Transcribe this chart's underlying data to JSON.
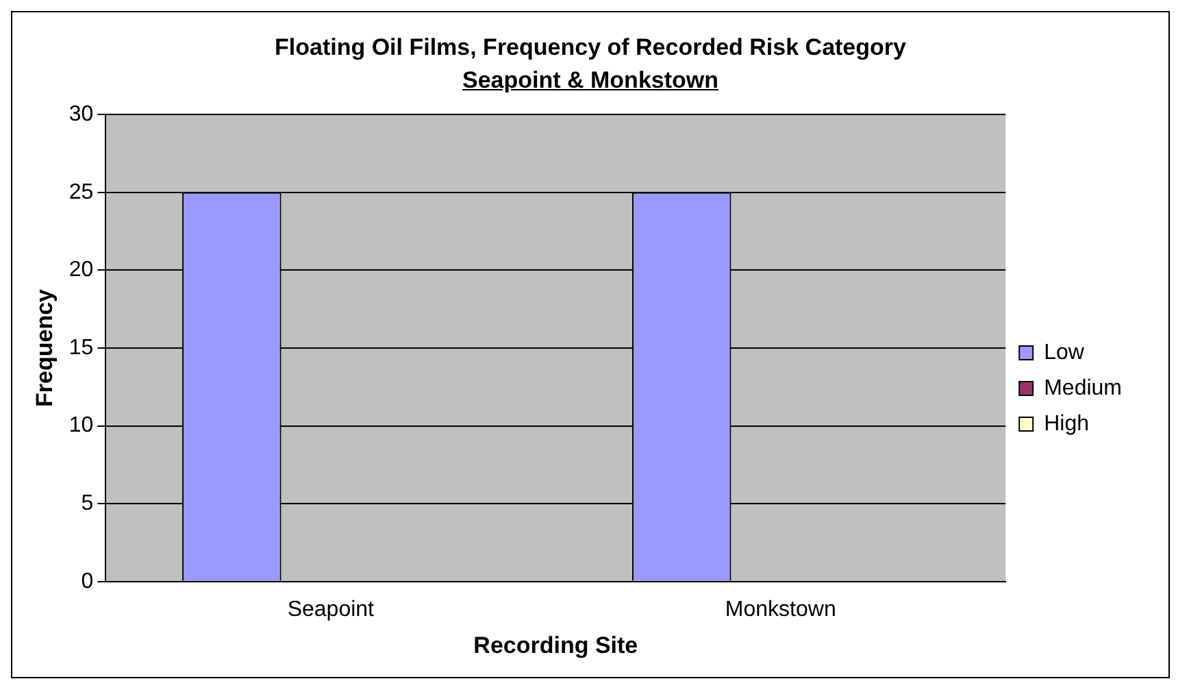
{
  "chart_data": {
    "type": "bar",
    "title": "Floating Oil Films, Frequency of Recorded Risk Category",
    "subtitle": "Seapoint & Monkstown",
    "xlabel": "Recording Site",
    "ylabel": "Frequency",
    "categories": [
      "Seapoint",
      "Monkstown"
    ],
    "series": [
      {
        "name": "Low",
        "color": "#9999ff",
        "values": [
          25,
          25
        ]
      },
      {
        "name": "Medium",
        "color": "#993366",
        "values": [
          0,
          0
        ]
      },
      {
        "name": "High",
        "color": "#ffffcc",
        "values": [
          0,
          0
        ]
      }
    ],
    "ylim": [
      0,
      30
    ],
    "yticks": [
      0,
      5,
      10,
      15,
      20,
      25,
      30
    ],
    "grid": "y",
    "legend": "right"
  }
}
